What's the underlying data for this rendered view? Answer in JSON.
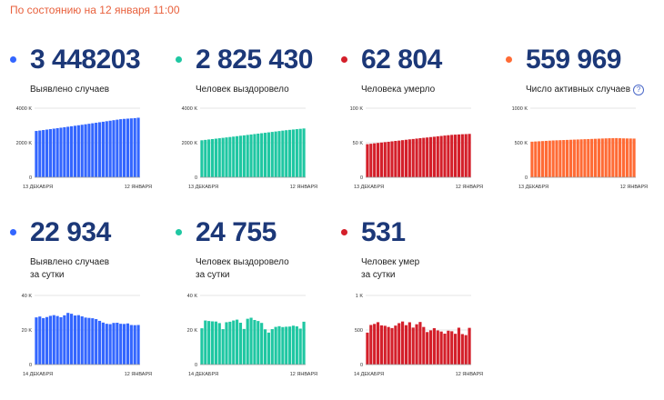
{
  "header": {
    "status_text": "По состоянию на 12 января 11:00"
  },
  "cards": [
    {
      "value": "3 448203",
      "caption": "Выявлено случаев",
      "color": "#3366ff"
    },
    {
      "value": "2 825 430",
      "caption": "Человек выздоровело",
      "color": "#1fc7a2"
    },
    {
      "value": "62 804",
      "caption": "Человека умерло",
      "color": "#d41f2a"
    },
    {
      "value": "559 969",
      "caption": "Число активных случаев",
      "color": "#ff6b35",
      "info_icon": "question-circle-icon",
      "info_icon_glyph": "?"
    },
    {
      "value": "22 934",
      "caption": "Выявлено случаев",
      "caption2": "за сутки",
      "color": "#3366ff"
    },
    {
      "value": "24 755",
      "caption": "Человек выздоровело",
      "caption2": "за сутки",
      "color": "#1fc7a2"
    },
    {
      "value": "531",
      "caption": "Человек умер",
      "caption2": "за сутки",
      "color": "#d41f2a"
    }
  ],
  "chart_data": [
    {
      "type": "bar",
      "name": "cumulative-cases",
      "color": "#3366ff",
      "ylim": [
        0,
        4000
      ],
      "yticks": [
        {
          "v": 0,
          "label": "0"
        },
        {
          "v": 2000,
          "label": "2000 K"
        },
        {
          "v": 4000,
          "label": "4000 K"
        }
      ],
      "x_start_label": "13 ДЕКАБРЯ",
      "x_end_label": "12 ЯНВАРЯ",
      "values": [
        2681,
        2707,
        2734,
        2761,
        2788,
        2815,
        2843,
        2870,
        2898,
        2926,
        2954,
        2983,
        3011,
        3040,
        3069,
        3098,
        3127,
        3156,
        3186,
        3215,
        3245,
        3275,
        3305,
        3335,
        3363,
        3381,
        3396,
        3410,
        3425,
        3448
      ]
    },
    {
      "type": "bar",
      "name": "cumulative-recovered",
      "color": "#1fc7a2",
      "ylim": [
        0,
        4000
      ],
      "yticks": [
        {
          "v": 0,
          "label": "0"
        },
        {
          "v": 2000,
          "label": "2000 K"
        },
        {
          "v": 4000,
          "label": "4000 K"
        }
      ],
      "x_start_label": "13 ДЕКАБРЯ",
      "x_end_label": "12 ЯНВАРЯ",
      "values": [
        2142,
        2165,
        2189,
        2212,
        2236,
        2260,
        2283,
        2307,
        2331,
        2355,
        2380,
        2404,
        2428,
        2453,
        2477,
        2502,
        2527,
        2551,
        2576,
        2601,
        2626,
        2651,
        2676,
        2701,
        2725,
        2746,
        2766,
        2786,
        2806,
        2825
      ]
    },
    {
      "type": "bar",
      "name": "cumulative-deaths",
      "color": "#d41f2a",
      "ylim": [
        0,
        100
      ],
      "yticks": [
        {
          "v": 0,
          "label": "0"
        },
        {
          "v": 50,
          "label": "50 K"
        },
        {
          "v": 100,
          "label": "100 K"
        }
      ],
      "x_start_label": "13 ДЕКАБРЯ",
      "x_end_label": "12 ЯНВАРЯ",
      "values": [
        47.9,
        48.5,
        49.1,
        49.7,
        50.3,
        50.9,
        51.4,
        52.0,
        52.6,
        53.1,
        53.7,
        54.3,
        54.9,
        55.4,
        56.0,
        56.6,
        57.1,
        57.6,
        58.2,
        58.7,
        59.3,
        59.8,
        60.4,
        60.9,
        61.4,
        61.7,
        62.0,
        62.3,
        62.5,
        62.8
      ]
    },
    {
      "type": "bar",
      "name": "active-cases",
      "color": "#ff6b35",
      "ylim": [
        0,
        1000
      ],
      "yticks": [
        {
          "v": 0,
          "label": "0"
        },
        {
          "v": 500,
          "label": "500 K"
        },
        {
          "v": 1000,
          "label": "1000 K"
        }
      ],
      "x_start_label": "13 ДЕКАБРЯ",
      "x_end_label": "12 ЯНВАРЯ",
      "values": [
        515,
        518,
        521,
        524,
        527,
        530,
        533,
        535,
        537,
        539,
        541,
        543,
        545,
        547,
        549,
        551,
        553,
        555,
        557,
        559,
        561,
        563,
        565,
        566,
        567,
        565,
        563,
        562,
        561,
        560
      ]
    },
    {
      "type": "bar",
      "name": "daily-cases",
      "color": "#3366ff",
      "ylim": [
        0,
        40
      ],
      "yticks": [
        {
          "v": 0,
          "label": "0"
        },
        {
          "v": 20,
          "label": "20 K"
        },
        {
          "v": 40,
          "label": "40 K"
        }
      ],
      "x_start_label": "14 ДЕКАБРЯ",
      "x_end_label": "12 ЯНВАРЯ",
      "values": [
        27.3,
        27.8,
        26.9,
        27.5,
        28.2,
        28.6,
        28.1,
        27.4,
        28.5,
        29.9,
        29.4,
        28.4,
        28.6,
        27.9,
        27.2,
        27.0,
        26.8,
        26.3,
        25.3,
        24.3,
        23.6,
        23.4,
        24.1,
        24.2,
        23.6,
        23.5,
        23.8,
        22.9,
        22.8,
        22.9
      ]
    },
    {
      "type": "bar",
      "name": "daily-recovered",
      "color": "#1fc7a2",
      "ylim": [
        0,
        40
      ],
      "yticks": [
        {
          "v": 0,
          "label": "0"
        },
        {
          "v": 20,
          "label": "20 K"
        },
        {
          "v": 40,
          "label": "40 K"
        }
      ],
      "x_start_label": "14 ДЕКАБРЯ",
      "x_end_label": "12 ЯНВАРЯ",
      "values": [
        21.0,
        25.5,
        25.2,
        25.0,
        24.9,
        24.0,
        20.5,
        24.5,
        24.8,
        25.5,
        26.0,
        24.2,
        20.6,
        26.5,
        27.1,
        25.8,
        25.2,
        24.1,
        20.4,
        18.5,
        20.5,
        21.8,
        22.2,
        21.7,
        21.9,
        22.0,
        22.5,
        22.1,
        20.8,
        24.8
      ]
    },
    {
      "type": "bar",
      "name": "daily-deaths",
      "color": "#d41f2a",
      "ylim": [
        0,
        1000
      ],
      "yticks": [
        {
          "v": 0,
          "label": "0"
        },
        {
          "v": 500,
          "label": "500"
        },
        {
          "v": 1000,
          "label": "1 K"
        }
      ],
      "x_start_label": "14 ДЕКАБРЯ",
      "x_end_label": "12 ЯНВАРЯ",
      "values": [
        462,
        573,
        588,
        613,
        567,
        561,
        544,
        528,
        564,
        599,
        623,
        570,
        612,
        535,
        583,
        616,
        544,
        470,
        495,
        526,
        494,
        478,
        447,
        490,
        482,
        445,
        533,
        441,
        426,
        531
      ]
    }
  ]
}
